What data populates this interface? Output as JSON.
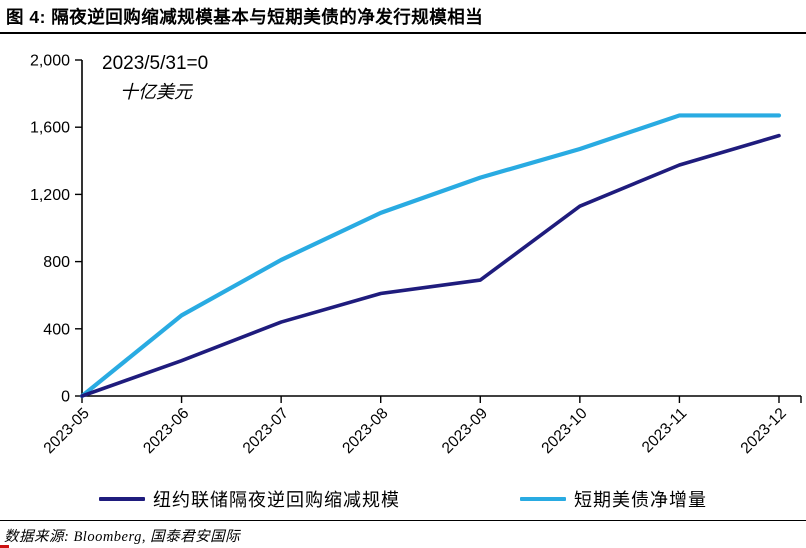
{
  "page": {
    "title": "图 4:  隔夜逆回购缩减规模基本与短期美债的净发行规模相当",
    "source_note": "数据来源: Bloomberg, 国泰君安国际"
  },
  "colors": {
    "series_rrp": "#1F1C7D",
    "series_tbill": "#29ABE2",
    "axis": "#000000",
    "text": "#000000"
  },
  "chart_data": {
    "type": "line",
    "title": "图 4: 隔夜逆回购缩减规模基本与短期美债的净发行规模相当",
    "baseline_note": "2023/5/31=0",
    "unit_note": "十亿美元",
    "categories": [
      "2023-05",
      "2023-06",
      "2023-07",
      "2023-08",
      "2023-09",
      "2023-10",
      "2023-11",
      "2023-12"
    ],
    "series": [
      {
        "name": "纽约联储隔夜逆回购缩减规模",
        "color": "#1F1C7D",
        "values": [
          0,
          210,
          440,
          610,
          690,
          1130,
          1375,
          1550
        ]
      },
      {
        "name": "短期美债净增量",
        "color": "#29ABE2",
        "values": [
          0,
          480,
          810,
          1090,
          1300,
          1470,
          1670,
          1670
        ]
      }
    ],
    "xlabel": "",
    "ylabel": "十亿美元",
    "ylim": [
      0,
      2000
    ],
    "yticks": [
      0,
      400,
      800,
      1200,
      1600,
      2000
    ],
    "grid": false,
    "legend_position": "bottom"
  }
}
